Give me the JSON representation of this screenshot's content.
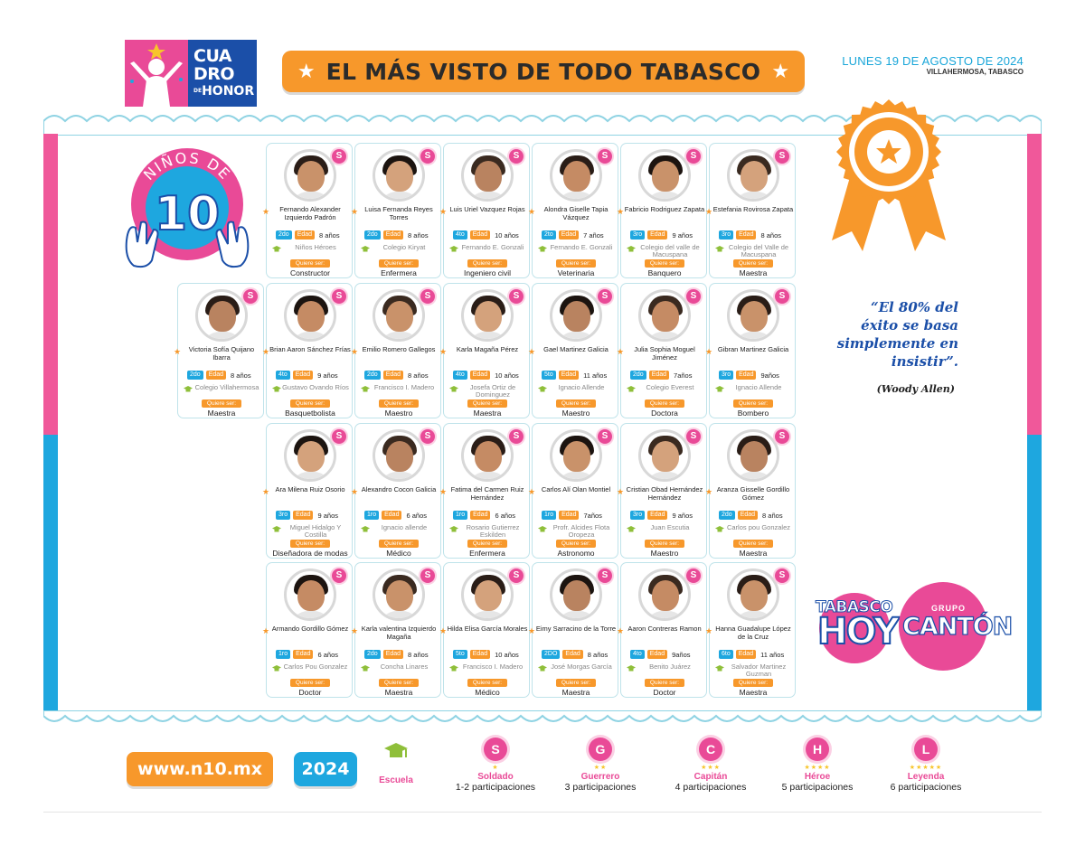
{
  "header": {
    "logo": {
      "line1": "CUA",
      "line2": "DRO",
      "line3": "HONOR",
      "small": "DE"
    },
    "title": "EL MÁS VISTO DE TODO TABASCO",
    "date": "LUNES 19 DE AGOSTO DE 2024",
    "place": "VILLAHERMOSA, TABASCO"
  },
  "badge": {
    "label": "NIÑOS DE",
    "number": "10"
  },
  "labels": {
    "edad": "Edad",
    "quiere": "Quiere ser:",
    "s": "S"
  },
  "kids": [
    {
      "name": "Fernando Alexander Izquierdo Padrón",
      "grade": "2do",
      "age": "8 años",
      "school": "Niños Héroes",
      "career": "Constructor"
    },
    {
      "name": "Luisa Fernanda Reyes Torres",
      "grade": "2do",
      "age": "8 años",
      "school": "Colegio Kiryat",
      "career": "Enfermera"
    },
    {
      "name": "Luis Uriel Vazquez Rojas",
      "grade": "4to",
      "age": "10 años",
      "school": "Fernando E. Gonzali",
      "career": "Ingeniero civil"
    },
    {
      "name": "Alondra Giselle Tapia Vázquez",
      "grade": "2to",
      "age": "7 años",
      "school": "Fernando E. Gonzali",
      "career": "Veterinaria"
    },
    {
      "name": "Fabricio Rodriguez Zapata",
      "grade": "3ro",
      "age": "9 años",
      "school": "Colegio del valle de Macuspana",
      "career": "Banquero"
    },
    {
      "name": "Estefania Rovirosa Zapata",
      "grade": "3ro",
      "age": "8 años",
      "school": "Colegio del Valle de Macuspana",
      "career": "Maestra"
    },
    {
      "name": "Victoria Sofía Quijano Ibarra",
      "grade": "2do",
      "age": "8 años",
      "school": "Colegio Villahermosa",
      "career": "Maestra"
    },
    {
      "name": "Brian Aaron Sánchez Frías",
      "grade": "4to",
      "age": "9 años",
      "school": "Gustavo Ovando Ríos",
      "career": "Basquetbolista"
    },
    {
      "name": "Emilio Romero Gallegos",
      "grade": "2do",
      "age": "8 años",
      "school": "Francisco I. Madero",
      "career": "Maestro"
    },
    {
      "name": "Karla Magaña Pérez",
      "grade": "4to",
      "age": "10 años",
      "school": "Josefa Ortiz de Dominguez",
      "career": "Maestra"
    },
    {
      "name": "Gael Martinez Galicia",
      "grade": "5to",
      "age": "11 años",
      "school": "Ignacio Allende",
      "career": "Maestro"
    },
    {
      "name": "Julia Sophia Moguel Jiménez",
      "grade": "2do",
      "age": "7años",
      "school": "Colegio Everest",
      "career": "Doctora"
    },
    {
      "name": "Gibran Martinez Galicia",
      "grade": "3ro",
      "age": "9años",
      "school": "Ignacio Allende",
      "career": "Bombero"
    },
    {
      "name": "Ara Milena Ruiz Osorio",
      "grade": "3ro",
      "age": "9 años",
      "school": "Miguel Hidalgo Y Costilla",
      "career": "Diseñadora de modas"
    },
    {
      "name": "Alexandro Cocon Galicia",
      "grade": "1ro",
      "age": "6 años",
      "school": "Ignacio allende",
      "career": "Médico"
    },
    {
      "name": "Fatima del Carmen Ruiz Hernández",
      "grade": "1ro",
      "age": "6 años",
      "school": "Rosario Gutierrez Eskilden",
      "career": "Enfermera"
    },
    {
      "name": "Carlos Alí Olan Montiel",
      "grade": "1ro",
      "age": "7años",
      "school": "Profr. Alcides Flota Oropeza",
      "career": "Astronomo"
    },
    {
      "name": "Cristian Obad Hernández Hernández",
      "grade": "3ro",
      "age": "9 años",
      "school": "Juan Escutia",
      "career": "Maestro"
    },
    {
      "name": "Aranza Gisselle Gordillo Gómez",
      "grade": "2do",
      "age": "8 años",
      "school": "Carlos pou Gonzalez",
      "career": "Maestra"
    },
    {
      "name": "Armando Gordillo Gómez",
      "grade": "1ro",
      "age": "6 años",
      "school": "Carlos Pou Gonzalez",
      "career": "Doctor"
    },
    {
      "name": "Karla valentina Izquierdo Magaña",
      "grade": "2do",
      "age": "8 años",
      "school": "Concha Linares",
      "career": "Maestra"
    },
    {
      "name": "Hilda Elisa García Morales",
      "grade": "5to",
      "age": "10 años",
      "school": "Francisco I. Madero",
      "career": "Médico"
    },
    {
      "name": "Eimy Sarracino de la Torre",
      "grade": "2DO",
      "age": "8 años",
      "school": "José Morgas García",
      "career": "Maestra"
    },
    {
      "name": "Aaron Contreras Ramon",
      "grade": "4to",
      "age": "9años",
      "school": "Benito Juárez",
      "career": "Doctor"
    },
    {
      "name": "Hanna Guadalupe López de la Cruz",
      "grade": "6to",
      "age": "11 años",
      "school": "Salvador Martinez Guzman",
      "career": "Maestra"
    }
  ],
  "quote": {
    "text": "“El 80% del éxito se basa simplemente en insistir”.",
    "author": "(Woody Allen)"
  },
  "partners": {
    "th_line1": "TABASCO",
    "th_line2": "HOY",
    "gc_line1": "GRUPO",
    "gc_line2": "CANTÓN"
  },
  "footer": {
    "url": "www.n10.mx",
    "year": "2024",
    "legend": [
      {
        "letter": "",
        "name": "Escuela",
        "desc": ""
      },
      {
        "letter": "S",
        "name": "Soldado",
        "desc": "1-2 participaciones",
        "stars": 1
      },
      {
        "letter": "G",
        "name": "Guerrero",
        "desc": "3 participaciones",
        "stars": 2
      },
      {
        "letter": "C",
        "name": "Capitán",
        "desc": "4 participaciones",
        "stars": 3
      },
      {
        "letter": "H",
        "name": "Héroe",
        "desc": "5 participaciones",
        "stars": 4
      },
      {
        "letter": "L",
        "name": "Leyenda",
        "desc": "6 participaciones",
        "stars": 5
      }
    ]
  },
  "colors": {
    "pink": "#e94a97",
    "blue": "#1ea7df",
    "orange": "#f7982b",
    "navy": "#1b4fa8"
  }
}
